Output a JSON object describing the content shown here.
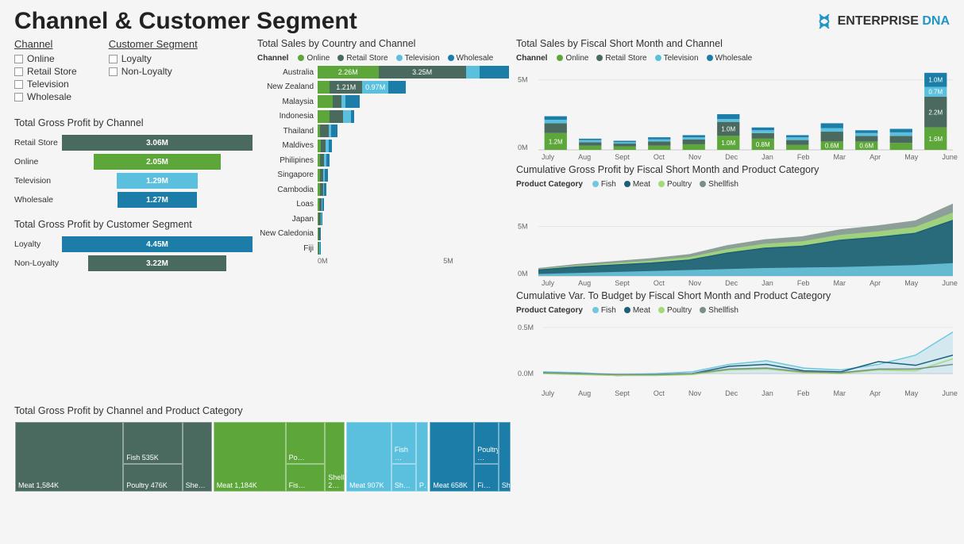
{
  "title": "Channel & Customer Segment",
  "logo": {
    "brand": "ENTERPRISE",
    "accent": "DNA"
  },
  "colors": {
    "online": "#5da639",
    "retail": "#4a6a5f",
    "television": "#5bc0de",
    "wholesale": "#1c7ea8",
    "loyalty": "#1c7ea8",
    "nonloyalty": "#4a6a5f",
    "fish": "#6fc8e0",
    "meat": "#1c5f7a",
    "poultry": "#a3d977",
    "shellfish": "#7a8f88",
    "bg": "#f5f5f5",
    "grid": "#dddddd",
    "text": "#333333"
  },
  "slicers": {
    "channel": {
      "title": "Channel",
      "items": [
        "Online",
        "Retail Store",
        "Television",
        "Wholesale"
      ]
    },
    "segment": {
      "title": "Customer Segment",
      "items": [
        "Loyalty",
        "Non-Loyalty"
      ]
    }
  },
  "gp_channel": {
    "title": "Total Gross Profit by Channel",
    "rows": [
      {
        "label": "Retail Store",
        "value": 3.06,
        "text": "3.06M",
        "color": "#4a6a5f"
      },
      {
        "label": "Online",
        "value": 2.05,
        "text": "2.05M",
        "color": "#5da639"
      },
      {
        "label": "Television",
        "value": 1.29,
        "text": "1.29M",
        "color": "#5bc0de"
      },
      {
        "label": "Wholesale",
        "value": 1.27,
        "text": "1.27M",
        "color": "#1c7ea8"
      }
    ],
    "max": 3.06
  },
  "gp_segment": {
    "title": "Total Gross Profit by Customer Segment",
    "rows": [
      {
        "label": "Loyalty",
        "value": 4.45,
        "text": "4.45M",
        "color": "#1c7ea8"
      },
      {
        "label": "Non-Loyalty",
        "value": 3.22,
        "text": "3.22M",
        "color": "#4a6a5f"
      }
    ],
    "max": 4.45
  },
  "sales_country": {
    "title": "Total Sales by Country and Channel",
    "legend_label": "Channel",
    "legend": [
      {
        "name": "Online",
        "color": "#5da639"
      },
      {
        "name": "Retail Store",
        "color": "#4a6a5f"
      },
      {
        "name": "Television",
        "color": "#5bc0de"
      },
      {
        "name": "Wholesale",
        "color": "#1c7ea8"
      }
    ],
    "max": 7.2,
    "axis_labels": [
      "0M",
      "5M"
    ],
    "rows": [
      {
        "label": "Australia",
        "segs": [
          {
            "v": 2.26,
            "t": "2.26M",
            "c": "#5da639"
          },
          {
            "v": 3.25,
            "t": "3.25M",
            "c": "#4a6a5f"
          },
          {
            "v": 0.5,
            "t": "",
            "c": "#5bc0de"
          },
          {
            "v": 1.1,
            "t": "",
            "c": "#1c7ea8"
          }
        ]
      },
      {
        "label": "New Zealand",
        "segs": [
          {
            "v": 0.45,
            "t": "",
            "c": "#5da639"
          },
          {
            "v": 1.21,
            "t": "1.21M",
            "c": "#4a6a5f"
          },
          {
            "v": 0.97,
            "t": "0.97M",
            "c": "#5bc0de"
          },
          {
            "v": 0.65,
            "t": "",
            "c": "#1c7ea8"
          }
        ]
      },
      {
        "label": "Malaysia",
        "segs": [
          {
            "v": 0.55,
            "t": "",
            "c": "#5da639"
          },
          {
            "v": 0.35,
            "t": "",
            "c": "#4a6a5f"
          },
          {
            "v": 0.12,
            "t": "",
            "c": "#5bc0de"
          },
          {
            "v": 0.55,
            "t": "",
            "c": "#1c7ea8"
          }
        ]
      },
      {
        "label": "Indonesia",
        "segs": [
          {
            "v": 0.45,
            "t": "",
            "c": "#5da639"
          },
          {
            "v": 0.5,
            "t": "",
            "c": "#4a6a5f"
          },
          {
            "v": 0.3,
            "t": "",
            "c": "#5bc0de"
          },
          {
            "v": 0.1,
            "t": "",
            "c": "#1c7ea8"
          }
        ]
      },
      {
        "label": "Thailand",
        "segs": [
          {
            "v": 0.1,
            "t": "",
            "c": "#5da639"
          },
          {
            "v": 0.3,
            "t": "",
            "c": "#4a6a5f"
          },
          {
            "v": 0.1,
            "t": "",
            "c": "#5bc0de"
          },
          {
            "v": 0.25,
            "t": "",
            "c": "#1c7ea8"
          }
        ]
      },
      {
        "label": "Maldives",
        "segs": [
          {
            "v": 0.12,
            "t": "",
            "c": "#5da639"
          },
          {
            "v": 0.18,
            "t": "",
            "c": "#4a6a5f"
          },
          {
            "v": 0.12,
            "t": "",
            "c": "#5bc0de"
          },
          {
            "v": 0.12,
            "t": "",
            "c": "#1c7ea8"
          }
        ]
      },
      {
        "label": "Philipines",
        "segs": [
          {
            "v": 0.1,
            "t": "",
            "c": "#5da639"
          },
          {
            "v": 0.15,
            "t": "",
            "c": "#4a6a5f"
          },
          {
            "v": 0.08,
            "t": "",
            "c": "#5bc0de"
          },
          {
            "v": 0.12,
            "t": "",
            "c": "#1c7ea8"
          }
        ]
      },
      {
        "label": "Singapore",
        "segs": [
          {
            "v": 0.09,
            "t": "",
            "c": "#5da639"
          },
          {
            "v": 0.12,
            "t": "",
            "c": "#4a6a5f"
          },
          {
            "v": 0.07,
            "t": "",
            "c": "#5bc0de"
          },
          {
            "v": 0.1,
            "t": "",
            "c": "#1c7ea8"
          }
        ]
      },
      {
        "label": "Cambodia",
        "segs": [
          {
            "v": 0.08,
            "t": "",
            "c": "#5da639"
          },
          {
            "v": 0.12,
            "t": "",
            "c": "#4a6a5f"
          },
          {
            "v": 0.04,
            "t": "",
            "c": "#5bc0de"
          },
          {
            "v": 0.08,
            "t": "",
            "c": "#1c7ea8"
          }
        ]
      },
      {
        "label": "Loas",
        "segs": [
          {
            "v": 0.06,
            "t": "",
            "c": "#5da639"
          },
          {
            "v": 0.09,
            "t": "",
            "c": "#4a6a5f"
          },
          {
            "v": 0.04,
            "t": "",
            "c": "#5bc0de"
          },
          {
            "v": 0.06,
            "t": "",
            "c": "#1c7ea8"
          }
        ]
      },
      {
        "label": "Japan",
        "segs": [
          {
            "v": 0.03,
            "t": "",
            "c": "#5da639"
          },
          {
            "v": 0.1,
            "t": "",
            "c": "#4a6a5f"
          },
          {
            "v": 0.03,
            "t": "",
            "c": "#5bc0de"
          },
          {
            "v": 0.03,
            "t": "",
            "c": "#1c7ea8"
          }
        ]
      },
      {
        "label": "New Caledonia",
        "segs": [
          {
            "v": 0.03,
            "t": "",
            "c": "#5da639"
          },
          {
            "v": 0.05,
            "t": "",
            "c": "#4a6a5f"
          },
          {
            "v": 0.02,
            "t": "",
            "c": "#5bc0de"
          },
          {
            "v": 0.03,
            "t": "",
            "c": "#1c7ea8"
          }
        ]
      },
      {
        "label": "Fiji",
        "segs": [
          {
            "v": 0.02,
            "t": "",
            "c": "#5da639"
          },
          {
            "v": 0.04,
            "t": "",
            "c": "#4a6a5f"
          },
          {
            "v": 0.02,
            "t": "",
            "c": "#5bc0de"
          },
          {
            "v": 0.02,
            "t": "",
            "c": "#1c7ea8"
          }
        ]
      }
    ]
  },
  "sales_month": {
    "title": "Total Sales by Fiscal Short Month and Channel",
    "legend_label": "Channel",
    "legend": [
      {
        "name": "Online",
        "color": "#5da639"
      },
      {
        "name": "Retail Store",
        "color": "#4a6a5f"
      },
      {
        "name": "Television",
        "color": "#5bc0de"
      },
      {
        "name": "Wholesale",
        "color": "#1c7ea8"
      }
    ],
    "ymax": 6.0,
    "ytick": "5M",
    "y0": "0M",
    "months": [
      "July",
      "Aug",
      "Sept",
      "Oct",
      "Nov",
      "Dec",
      "Jan",
      "Feb",
      "Mar",
      "Apr",
      "May",
      "June"
    ],
    "stacks": [
      [
        {
          "v": 1.2,
          "t": "1.2M",
          "c": "#5da639"
        },
        {
          "v": 0.7,
          "t": "",
          "c": "#4a6a5f"
        },
        {
          "v": 0.25,
          "t": "",
          "c": "#5bc0de"
        },
        {
          "v": 0.25,
          "t": "",
          "c": "#1c7ea8"
        }
      ],
      [
        {
          "v": 0.3,
          "t": "",
          "c": "#5da639"
        },
        {
          "v": 0.25,
          "t": "",
          "c": "#4a6a5f"
        },
        {
          "v": 0.15,
          "t": "",
          "c": "#5bc0de"
        },
        {
          "v": 0.1,
          "t": "",
          "c": "#1c7ea8"
        }
      ],
      [
        {
          "v": 0.25,
          "t": "",
          "c": "#5da639"
        },
        {
          "v": 0.2,
          "t": "",
          "c": "#4a6a5f"
        },
        {
          "v": 0.1,
          "t": "",
          "c": "#5bc0de"
        },
        {
          "v": 0.1,
          "t": "",
          "c": "#1c7ea8"
        }
      ],
      [
        {
          "v": 0.3,
          "t": "",
          "c": "#5da639"
        },
        {
          "v": 0.3,
          "t": "",
          "c": "#4a6a5f"
        },
        {
          "v": 0.15,
          "t": "",
          "c": "#5bc0de"
        },
        {
          "v": 0.15,
          "t": "",
          "c": "#1c7ea8"
        }
      ],
      [
        {
          "v": 0.4,
          "t": "",
          "c": "#5da639"
        },
        {
          "v": 0.35,
          "t": "",
          "c": "#4a6a5f"
        },
        {
          "v": 0.15,
          "t": "",
          "c": "#5bc0de"
        },
        {
          "v": 0.15,
          "t": "",
          "c": "#1c7ea8"
        }
      ],
      [
        {
          "v": 1.0,
          "t": "1.0M",
          "c": "#5da639"
        },
        {
          "v": 1.0,
          "t": "1.0M",
          "c": "#4a6a5f"
        },
        {
          "v": 0.2,
          "t": "",
          "c": "#5bc0de"
        },
        {
          "v": 0.35,
          "t": "",
          "c": "#1c7ea8"
        }
      ],
      [
        {
          "v": 0.8,
          "t": "0.8M",
          "c": "#5da639"
        },
        {
          "v": 0.4,
          "t": "",
          "c": "#4a6a5f"
        },
        {
          "v": 0.2,
          "t": "",
          "c": "#5bc0de"
        },
        {
          "v": 0.2,
          "t": "",
          "c": "#1c7ea8"
        }
      ],
      [
        {
          "v": 0.35,
          "t": "",
          "c": "#5da639"
        },
        {
          "v": 0.35,
          "t": "",
          "c": "#4a6a5f"
        },
        {
          "v": 0.2,
          "t": "",
          "c": "#5bc0de"
        },
        {
          "v": 0.15,
          "t": "",
          "c": "#1c7ea8"
        }
      ],
      [
        {
          "v": 0.6,
          "t": "0.6M",
          "c": "#5da639"
        },
        {
          "v": 0.7,
          "t": "",
          "c": "#4a6a5f"
        },
        {
          "v": 0.25,
          "t": "",
          "c": "#5bc0de"
        },
        {
          "v": 0.35,
          "t": "",
          "c": "#1c7ea8"
        }
      ],
      [
        {
          "v": 0.6,
          "t": "0.6M",
          "c": "#5da639"
        },
        {
          "v": 0.4,
          "t": "",
          "c": "#4a6a5f"
        },
        {
          "v": 0.2,
          "t": "",
          "c": "#5bc0de"
        },
        {
          "v": 0.2,
          "t": "",
          "c": "#1c7ea8"
        }
      ],
      [
        {
          "v": 0.5,
          "t": "",
          "c": "#5da639"
        },
        {
          "v": 0.5,
          "t": "",
          "c": "#4a6a5f"
        },
        {
          "v": 0.25,
          "t": "",
          "c": "#5bc0de"
        },
        {
          "v": 0.25,
          "t": "",
          "c": "#1c7ea8"
        }
      ],
      [
        {
          "v": 1.6,
          "t": "1.6M",
          "c": "#5da639"
        },
        {
          "v": 2.2,
          "t": "2.2M",
          "c": "#4a6a5f"
        },
        {
          "v": 0.7,
          "t": "0.7M",
          "c": "#5bc0de"
        },
        {
          "v": 1.0,
          "t": "1.0M",
          "c": "#1c7ea8"
        }
      ]
    ]
  },
  "cum_gp": {
    "title": "Cumulative Gross Profit by Fiscal Short Month and Product Category",
    "legend_label": "Product Category",
    "legend": [
      {
        "name": "Fish",
        "color": "#6fc8e0"
      },
      {
        "name": "Meat",
        "color": "#1c5f7a"
      },
      {
        "name": "Poultry",
        "color": "#a3d977"
      },
      {
        "name": "Shellfish",
        "color": "#7a8f88"
      }
    ],
    "ymax": 8.0,
    "ytick": "5M",
    "y0": "0M",
    "months": [
      "July",
      "Aug",
      "Sept",
      "Oct",
      "Nov",
      "Dec",
      "Jan",
      "Feb",
      "Mar",
      "Apr",
      "May",
      "June"
    ],
    "series": {
      "fish": [
        0.2,
        0.3,
        0.4,
        0.5,
        0.6,
        0.7,
        0.8,
        0.85,
        0.9,
        1.0,
        1.1,
        1.3
      ],
      "meat": [
        0.6,
        0.9,
        1.1,
        1.3,
        1.6,
        2.3,
        2.8,
        3.0,
        3.6,
        3.9,
        4.3,
        5.6
      ],
      "poultry": [
        0.7,
        1.05,
        1.3,
        1.55,
        1.9,
        2.7,
        3.25,
        3.5,
        4.15,
        4.5,
        4.95,
        6.4
      ],
      "shellfish": [
        0.8,
        1.2,
        1.5,
        1.8,
        2.2,
        3.1,
        3.7,
        4.0,
        4.7,
        5.1,
        5.6,
        7.3
      ]
    }
  },
  "cum_var": {
    "title": "Cumulative Var. To Budget by Fiscal Short Month and Product Category",
    "legend_label": "Product Category",
    "legend": [
      {
        "name": "Fish",
        "color": "#6fc8e0"
      },
      {
        "name": "Meat",
        "color": "#1c5f7a"
      },
      {
        "name": "Poultry",
        "color": "#a3d977"
      },
      {
        "name": "Shellfish",
        "color": "#7a8f88"
      }
    ],
    "ymax": 0.55,
    "ytick": "0.5M",
    "y0": "0.0M",
    "months": [
      "July",
      "Aug",
      "Sept",
      "Oct",
      "Nov",
      "Dec",
      "Jan",
      "Feb",
      "Mar",
      "Apr",
      "May",
      "June"
    ],
    "series": {
      "fish": [
        0.02,
        0.01,
        -0.01,
        0.0,
        0.02,
        0.1,
        0.14,
        0.06,
        0.04,
        0.1,
        0.2,
        0.45
      ],
      "meat": [
        0.01,
        0.0,
        -0.02,
        -0.01,
        0.0,
        0.08,
        0.1,
        0.03,
        0.02,
        0.13,
        0.09,
        0.2
      ],
      "poultry": [
        0.0,
        -0.01,
        -0.02,
        -0.02,
        -0.01,
        0.04,
        0.05,
        0.01,
        0.0,
        0.04,
        0.03,
        0.16
      ],
      "shellfish": [
        0.01,
        0.0,
        -0.01,
        -0.01,
        0.0,
        0.05,
        0.06,
        0.02,
        0.01,
        0.05,
        0.05,
        0.1
      ]
    }
  },
  "treemap": {
    "title": "Total Gross Profit by Channel and Product Category",
    "cats": [
      {
        "name": "Retail Store",
        "color": "#4a6a5f",
        "weight": 3.06,
        "cells": [
          {
            "t": "Meat 1,584K"
          },
          {
            "t": "Fish 535K"
          },
          {
            "t": "Poultry 476K"
          },
          {
            "t": "She…"
          }
        ]
      },
      {
        "name": "Online",
        "color": "#5da639",
        "weight": 2.05,
        "cells": [
          {
            "t": "Meat 1,184K"
          },
          {
            "t": "Po…"
          },
          {
            "t": "Fis…"
          },
          {
            "t": "Shellfish 2…"
          }
        ]
      },
      {
        "name": "Television",
        "color": "#5bc0de",
        "weight": 1.29,
        "cells": [
          {
            "t": "Meat 907K"
          },
          {
            "t": "Fish …"
          },
          {
            "t": "Sh…"
          },
          {
            "t": "P…"
          }
        ]
      },
      {
        "name": "Wholesale",
        "color": "#1c7ea8",
        "weight": 1.27,
        "cells": [
          {
            "t": "Meat 658K"
          },
          {
            "t": "Poultry …"
          },
          {
            "t": "Fi…"
          },
          {
            "t": "Shell…"
          }
        ]
      }
    ]
  }
}
